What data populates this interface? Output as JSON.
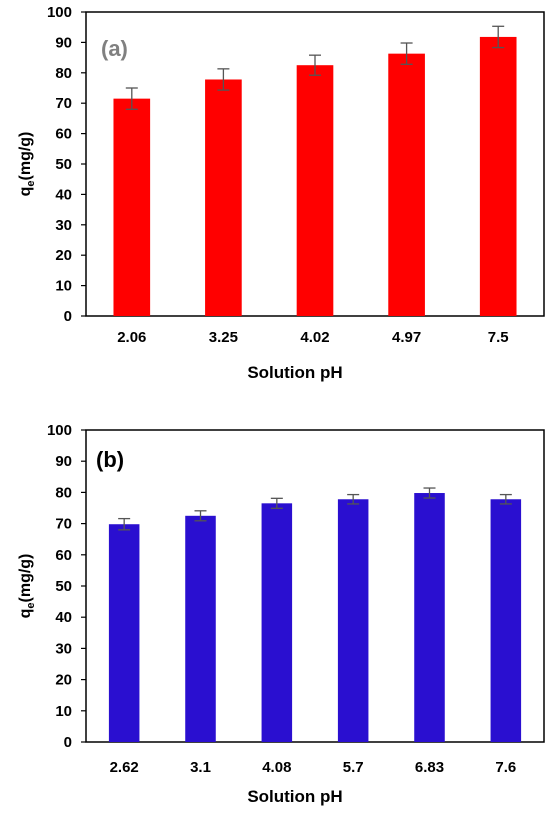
{
  "chart_data": [
    {
      "type": "bar",
      "panel_label": "(a)",
      "panel_label_color": "#808080",
      "categories": [
        "2.06",
        "3.25",
        "4.02",
        "4.97",
        "7.5"
      ],
      "values": [
        71.5,
        77.8,
        82.5,
        86.3,
        91.8
      ],
      "errors": [
        3.5,
        3.5,
        3.3,
        3.5,
        3.5
      ],
      "bar_color": "#ff0000",
      "xlabel": "Solution pH",
      "ylabel_main": "q",
      "ylabel_sub": "e",
      "ylabel_rest": "(mg/g)",
      "ylim": [
        0,
        100
      ],
      "yticks": [
        0,
        10,
        20,
        30,
        40,
        50,
        60,
        70,
        80,
        90,
        100
      ],
      "grid": false,
      "legend": "none"
    },
    {
      "type": "bar",
      "panel_label": "(b)",
      "panel_label_color": "#000000",
      "categories": [
        "2.62",
        "3.1",
        "4.08",
        "5.7",
        "6.83",
        "7.6"
      ],
      "values": [
        69.8,
        72.5,
        76.5,
        77.8,
        79.8,
        77.8
      ],
      "errors": [
        1.8,
        1.6,
        1.6,
        1.5,
        1.6,
        1.5
      ],
      "bar_color": "#2a0fd0",
      "xlabel": "Solution pH",
      "ylabel_main": "q",
      "ylabel_sub": "e",
      "ylabel_rest": "(mg/g)",
      "ylim": [
        0,
        100
      ],
      "yticks": [
        0,
        10,
        20,
        30,
        40,
        50,
        60,
        70,
        80,
        90,
        100
      ],
      "grid": false,
      "legend": "none"
    }
  ]
}
